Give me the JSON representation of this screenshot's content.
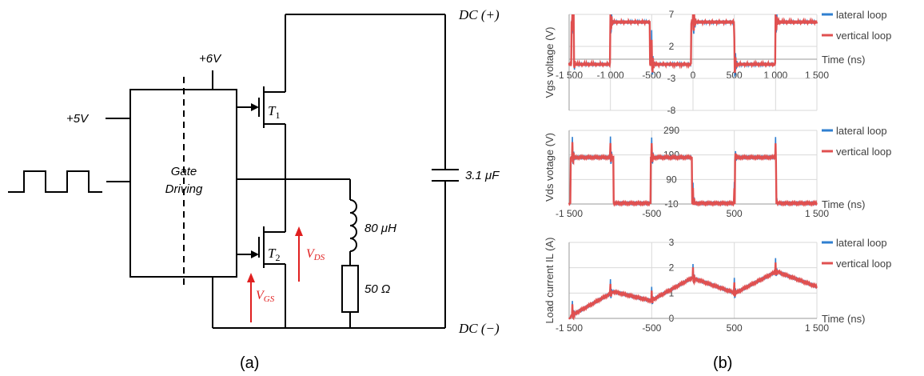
{
  "circuit": {
    "dc_plus": "DC (+)",
    "dc_minus": "DC (−)",
    "v6": "+6V",
    "v5": "+5V",
    "gate_line1": "Gate",
    "gate_line2": "Driving",
    "t1": "T",
    "t1_sub": "1",
    "t2": "T",
    "t2_sub": "2",
    "cap_label": "3.1 μF",
    "ind_label": "80 μH",
    "res_label": "50 Ω",
    "vds": "V",
    "vds_sub": "DS",
    "vgs": "V",
    "vgs_sub": "GS",
    "caption": "(a)"
  },
  "panel_b_caption": "(b)",
  "chart_data": [
    {
      "type": "line",
      "ylabel": "Vgs voltage (V)",
      "xlabel": "Time (ns)",
      "xlim": [
        -1500,
        1500
      ],
      "ylim": [
        -8,
        7
      ],
      "yticks": [
        "7",
        "2",
        "-3",
        "-8"
      ],
      "xticks": [
        "-1 500",
        "-1 000",
        "-500",
        "0",
        "500",
        "1 000",
        "1 500"
      ],
      "series": [
        {
          "name": "lateral loop",
          "color": "#2f7fd0"
        },
        {
          "name": "vertical loop",
          "color": "#e05050"
        }
      ]
    },
    {
      "type": "line",
      "ylabel": "Vds votage (V)",
      "xlabel": "Time (ns)",
      "xlim": [
        -1500,
        1500
      ],
      "ylim": [
        -10,
        290
      ],
      "yticks": [
        "290",
        "190",
        "90",
        "-10"
      ],
      "xticks": [
        "-1 500",
        "-500",
        "500",
        "1 500"
      ],
      "series": [
        {
          "name": "lateral loop",
          "color": "#2f7fd0"
        },
        {
          "name": "vertical loop",
          "color": "#e05050"
        }
      ]
    },
    {
      "type": "line",
      "ylabel": "Load current IL (A)",
      "xlabel": "Time (ns)",
      "xlim": [
        -1500,
        1500
      ],
      "ylim": [
        0,
        3
      ],
      "yticks": [
        "3",
        "2",
        "1",
        "0"
      ],
      "xticks": [
        "-1 500",
        "-500",
        "500",
        "1 500"
      ],
      "series": [
        {
          "name": "lateral loop",
          "color": "#2f7fd0"
        },
        {
          "name": "vertical loop",
          "color": "#e05050"
        }
      ]
    }
  ]
}
